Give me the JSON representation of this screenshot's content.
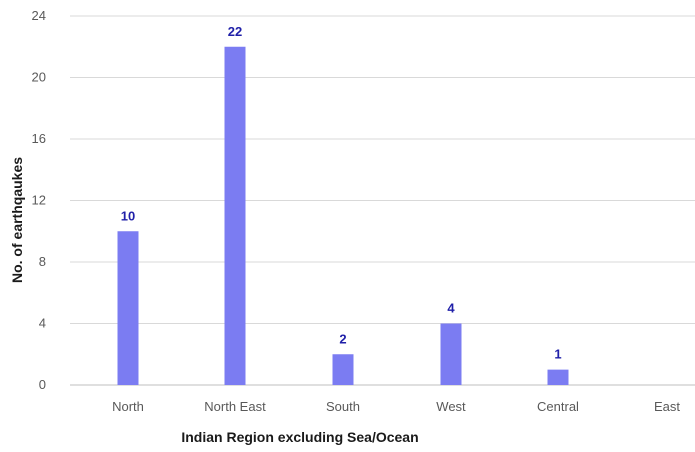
{
  "chart_data": {
    "type": "bar",
    "title": "",
    "xlabel": "Indian Region excluding Sea/Ocean",
    "ylabel": "No. of earthqaukes",
    "categories": [
      "North",
      "North East",
      "South",
      "West",
      "Central",
      "East"
    ],
    "values": [
      10,
      22,
      2,
      4,
      1,
      0
    ],
    "data_labels": [
      "10",
      "22",
      "2",
      "4",
      "1",
      ""
    ],
    "ylim": [
      0,
      24
    ],
    "yticks": [
      "0",
      "4",
      "8",
      "12",
      "16",
      "20",
      "24"
    ],
    "grid": "horizontal",
    "legend": "none",
    "colors": {
      "bar": "#7b7cf2",
      "data_label": "#1f1fa8",
      "grid": "#d9d9d9",
      "tick": "#595959"
    }
  }
}
